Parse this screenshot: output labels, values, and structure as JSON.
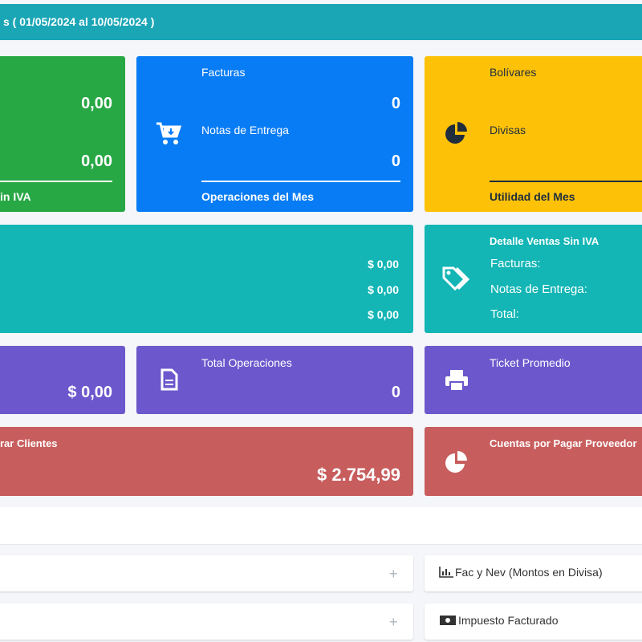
{
  "header": {
    "title": "s ( 01/05/2024 al 10/05/2024 )"
  },
  "cards": [
    {
      "values": [
        "0,00",
        "0,00"
      ],
      "footer": "in IVA"
    },
    {
      "labels": [
        "Facturas",
        "Notas de Entrega"
      ],
      "values": [
        "0",
        "0"
      ],
      "footer": "Operaciones del Mes"
    },
    {
      "labels": [
        "Bolívares",
        "Divisas"
      ],
      "footer": "Utilidad del Mes"
    },
    {
      "values": [
        "$ 0,00",
        "$ 0,00",
        "$ 0,00"
      ]
    },
    {
      "title": "Detalle Ventas Sin IVA",
      "labels": [
        "Facturas:",
        "Notas de Entrega:",
        "Total:"
      ]
    },
    {
      "value": "$ 0,00"
    },
    {
      "title": "Total Operaciones",
      "value": "0"
    },
    {
      "title": "Ticket Promedio"
    },
    {
      "title": "rar Clientes",
      "value": "$ 2.754,99"
    },
    {
      "title": "Cuentas por Pagar Proveedor"
    }
  ],
  "panels": [
    {
      "title": "Fac y Nev (Montos en Divisa)"
    },
    {
      "title": "Impuesto Facturado"
    }
  ],
  "expand": "+"
}
